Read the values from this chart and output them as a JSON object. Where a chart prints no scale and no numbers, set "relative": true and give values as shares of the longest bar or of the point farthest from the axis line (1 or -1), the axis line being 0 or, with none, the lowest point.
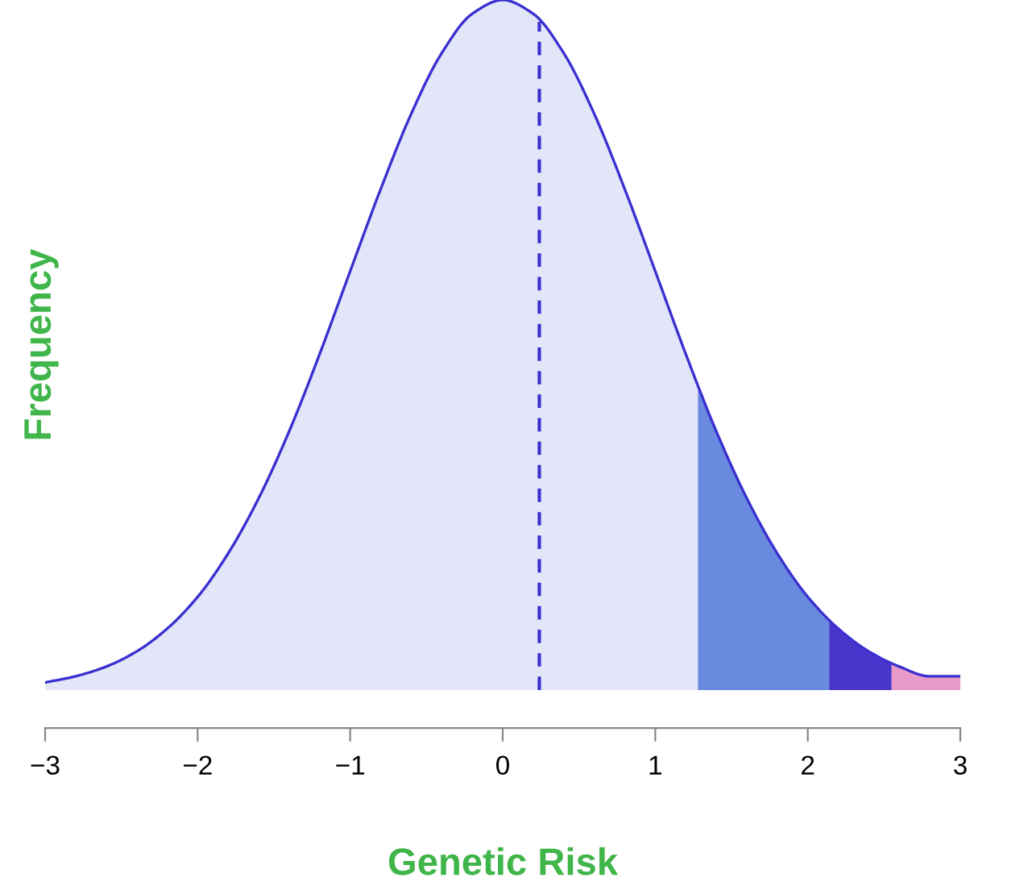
{
  "chart_data": {
    "type": "area",
    "xlabel": "Genetic Risk",
    "ylabel": "Frequency",
    "relative": true,
    "tick_labels": "x",
    "xlim": [
      -3,
      3
    ],
    "xticks": [
      {
        "value": -3,
        "label": "−3"
      },
      {
        "value": -2,
        "label": "−2"
      },
      {
        "value": -1,
        "label": "−1"
      },
      0,
      1,
      2,
      3
    ],
    "series": [
      {
        "color": "#e2e6f8",
        "x": [
          -3,
          -2.8,
          -2.6,
          -2.4,
          -2.2,
          -2,
          -1.8,
          -1.6,
          -1.4,
          -1.2,
          -1,
          -0.8,
          -0.6,
          -0.4,
          -0.2,
          0,
          0.2,
          0.4,
          0.6,
          0.8,
          1,
          1.2,
          1.28
        ],
        "values": [
          0.011,
          0.02,
          0.034,
          0.056,
          0.089,
          0.135,
          0.198,
          0.278,
          0.375,
          0.487,
          0.607,
          0.726,
          0.835,
          0.923,
          0.98,
          1,
          0.98,
          0.923,
          0.835,
          0.726,
          0.607,
          0.487,
          0.441
        ]
      },
      {
        "color": "#6a8ae0",
        "x": [
          1.28,
          1.4,
          1.6,
          1.8,
          2,
          2.14
        ],
        "values": [
          0.441,
          0.375,
          0.278,
          0.198,
          0.135,
          0.101
        ]
      },
      {
        "color": "#4a35cc",
        "x": [
          2.14,
          2.2,
          2.4,
          2.55
        ],
        "values": [
          0.101,
          0.089,
          0.056,
          0.039
        ]
      },
      {
        "color": "#e89ac8",
        "x": [
          2.55,
          2.6,
          2.8,
          3
        ],
        "values": [
          0.039,
          0.034,
          0.02,
          0.02
        ]
      },
      {
        "type": "line",
        "color": "#3a30d0",
        "x": [
          -3,
          -2.8,
          -2.6,
          -2.4,
          -2.2,
          -2,
          -1.8,
          -1.6,
          -1.4,
          -1.2,
          -1,
          -0.8,
          -0.6,
          -0.4,
          -0.2,
          0,
          0.2,
          0.4,
          0.6,
          0.8,
          1,
          1.2,
          1.4,
          1.6,
          1.8,
          2,
          2.2,
          2.4,
          2.6,
          2.8,
          3
        ],
        "values": [
          0.011,
          0.02,
          0.034,
          0.056,
          0.089,
          0.135,
          0.198,
          0.278,
          0.375,
          0.487,
          0.607,
          0.726,
          0.835,
          0.923,
          0.98,
          1,
          0.98,
          0.923,
          0.835,
          0.726,
          0.607,
          0.487,
          0.375,
          0.278,
          0.198,
          0.135,
          0.089,
          0.056,
          0.034,
          0.02,
          0.02
        ]
      }
    ],
    "ref_lines": [
      {
        "axis": "x",
        "value": 0.24,
        "color": "#3a30d0",
        "line_style": "dashed"
      }
    ]
  }
}
